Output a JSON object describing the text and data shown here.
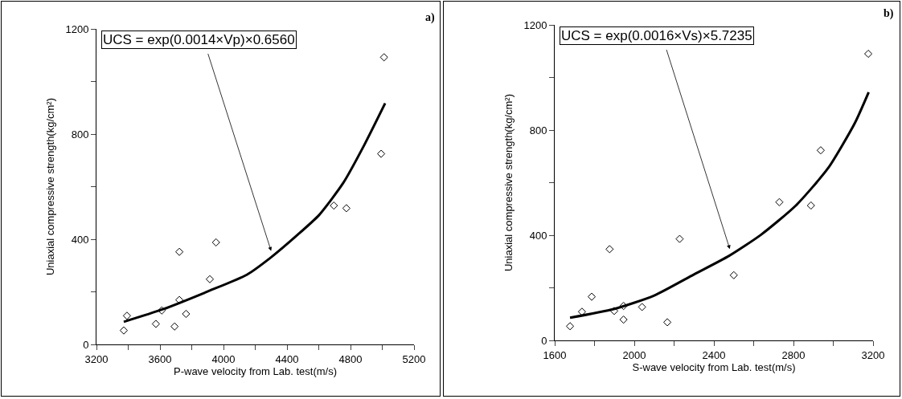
{
  "chart_data": [
    {
      "type": "scatter",
      "xlabel": "P-wave velocity from Lab. test(m/s)",
      "ylabel": "Uniaxial compressive strength(kg/cm²)",
      "xlim": [
        3200,
        5200
      ],
      "xticks": [
        3200,
        {
          "value": 3400,
          "label": null
        },
        3600,
        {
          "value": 3800,
          "label": null
        },
        4000,
        {
          "value": 4200,
          "label": null
        },
        4400,
        {
          "value": 4600,
          "label": null
        },
        4800,
        {
          "value": 5000,
          "label": null
        },
        5200
      ],
      "ylim": [
        0,
        1200
      ],
      "yticks": [
        0,
        {
          "value": 200,
          "label": null
        },
        400,
        {
          "value": 600,
          "label": null
        },
        800,
        {
          "value": 1000,
          "label": null
        },
        1200
      ],
      "annotations": [
        "a)",
        "UCS = exp(0.0014×Vp)×0.6560"
      ],
      "series": [
        {
          "marker": "diamond",
          "color": "#000000",
          "x": [
            3372,
            3392,
            3574,
            3611,
            3692,
            3722,
            3722,
            3764,
            3914,
            3953,
            4695,
            4774,
            4993,
            5011
          ],
          "values": [
            53,
            109,
            78,
            129,
            68,
            169,
            352,
            116,
            248,
            388,
            528,
            518,
            725,
            1092
          ]
        },
        {
          "type": "line",
          "marker": "none",
          "color": "#000000",
          "line_style": "solid",
          "x": [
            3372,
            3615,
            3911,
            4147,
            4299,
            4467,
            4602,
            4754,
            4888,
            5018
          ],
          "values": [
            86,
            133,
            204,
            265,
            331,
            417,
            492,
            614,
            760,
            917
          ]
        }
      ]
    },
    {
      "type": "scatter",
      "xlabel": "S-wave velocity from Lab. test(m/s)",
      "ylabel": "Uniaxial compressive strength(kg/cm²)",
      "xlim": [
        1600,
        3200
      ],
      "xticks": [
        1600,
        {
          "value": 1800,
          "label": null
        },
        2000,
        {
          "value": 2200,
          "label": null
        },
        2400,
        {
          "value": 2600,
          "label": null
        },
        2800,
        {
          "value": 3000,
          "label": null
        },
        3200
      ],
      "ylim": [
        0,
        1200
      ],
      "yticks": [
        0,
        {
          "value": 200,
          "label": null
        },
        400,
        {
          "value": 600,
          "label": null
        },
        800,
        {
          "value": 1000,
          "label": null
        },
        1200
      ],
      "annotations": [
        "b)",
        "UCS = exp(0.0016×Vs)×5.7235"
      ],
      "series": [
        {
          "marker": "diamond",
          "color": "#000000",
          "x": [
            1677,
            1737,
            1786,
            1876,
            1899,
            1946,
            1946,
            2039,
            2166,
            2228,
            2500,
            2729,
            2888,
            2937,
            3176
          ],
          "values": [
            54,
            109,
            166,
            347,
            112,
            79,
            131,
            127,
            69,
            386,
            248,
            526,
            513,
            723,
            1090
          ]
        },
        {
          "type": "line",
          "marker": "none",
          "color": "#000000",
          "line_style": "solid",
          "x": [
            1677,
            1896,
            2098,
            2300,
            2475,
            2637,
            2812,
            2974,
            3108,
            3178
          ],
          "values": [
            86,
            119,
            170,
            251,
            321,
            402,
            513,
            655,
            826,
            944
          ]
        }
      ]
    }
  ]
}
